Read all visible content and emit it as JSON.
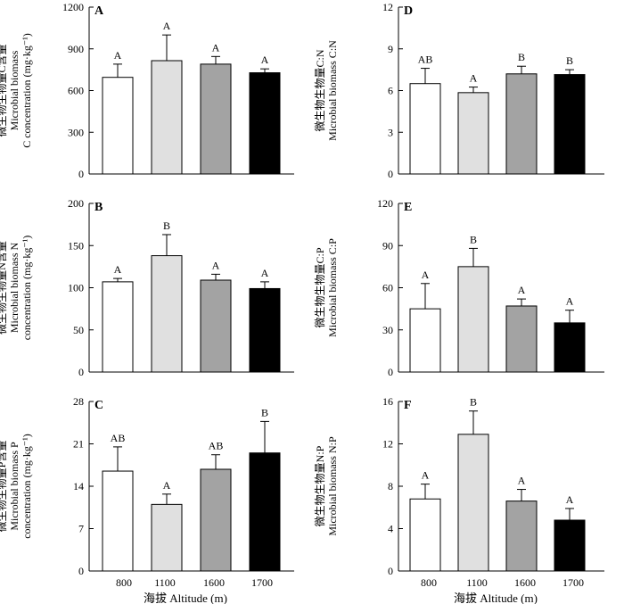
{
  "colors": {
    "s800": "#ffffff",
    "s1100": "#e0e0e0",
    "s1600": "#a3a3a3",
    "s1700": "#000000",
    "stroke": "#000000"
  },
  "x_axis_title": "海拔 Altitude (m)",
  "chart_data": [
    {
      "panel": "A",
      "type": "bar",
      "categories": [
        "800",
        "1100",
        "1600",
        "1700"
      ],
      "values": [
        695,
        815,
        790,
        728
      ],
      "errors": [
        95,
        185,
        55,
        28
      ],
      "sig": [
        "A",
        "A",
        "A",
        "A"
      ],
      "ylim": [
        0,
        1200
      ],
      "yticks": [
        "0",
        "300",
        "600",
        "900",
        "1200"
      ],
      "ylabel": [
        "微生物生物量C含量",
        "Microbial biomass",
        "C concentration (mg·kg⁻¹)"
      ]
    },
    {
      "panel": "B",
      "type": "bar",
      "categories": [
        "800",
        "1100",
        "1600",
        "1700"
      ],
      "values": [
        107,
        138,
        109,
        99
      ],
      "errors": [
        4,
        25,
        7,
        8
      ],
      "sig": [
        "A",
        "B",
        "A",
        "A"
      ],
      "ylim": [
        0,
        200
      ],
      "yticks": [
        "0",
        "50",
        "100",
        "150",
        "200"
      ],
      "ylabel": [
        "微生物生物量N含量",
        "Microbial biomass N",
        "concentration (mg·kg⁻¹)"
      ]
    },
    {
      "panel": "C",
      "type": "bar",
      "categories": [
        "800",
        "1100",
        "1600",
        "1700"
      ],
      "values": [
        16.5,
        11.0,
        16.8,
        19.5
      ],
      "errors": [
        4.0,
        1.7,
        2.4,
        5.2
      ],
      "sig": [
        "AB",
        "A",
        "AB",
        "B"
      ],
      "ylim": [
        0,
        28
      ],
      "yticks": [
        "0",
        "7",
        "14",
        "21",
        "28"
      ],
      "ylabel": [
        "微生物生物量P含量",
        "Microbial biomass P",
        "concentration (mg·kg⁻¹)"
      ]
    },
    {
      "panel": "D",
      "type": "bar",
      "categories": [
        "800",
        "1100",
        "1600",
        "1700"
      ],
      "values": [
        6.5,
        5.85,
        7.2,
        7.15
      ],
      "errors": [
        1.1,
        0.4,
        0.55,
        0.35
      ],
      "sig": [
        "AB",
        "A",
        "B",
        "B"
      ],
      "ylim": [
        0,
        12
      ],
      "yticks": [
        "0",
        "3",
        "6",
        "9",
        "12"
      ],
      "ylabel": [
        "微生物生物量C:N",
        "Microbial biomass C:N"
      ]
    },
    {
      "panel": "E",
      "type": "bar",
      "categories": [
        "800",
        "1100",
        "1600",
        "1700"
      ],
      "values": [
        45,
        75,
        47,
        35
      ],
      "errors": [
        18,
        13,
        5,
        9
      ],
      "sig": [
        "A",
        "B",
        "A",
        "A"
      ],
      "ylim": [
        0,
        120
      ],
      "yticks": [
        "0",
        "30",
        "60",
        "90",
        "120"
      ],
      "ylabel": [
        "微生物生物量C:P",
        "Microbial biomass C:P"
      ]
    },
    {
      "panel": "F",
      "type": "bar",
      "categories": [
        "800",
        "1100",
        "1600",
        "1700"
      ],
      "values": [
        6.8,
        12.9,
        6.6,
        4.8
      ],
      "errors": [
        1.4,
        2.2,
        1.1,
        1.1
      ],
      "sig": [
        "A",
        "B",
        "A",
        "A"
      ],
      "ylim": [
        0,
        16
      ],
      "yticks": [
        "0",
        "4",
        "8",
        "12",
        "16"
      ],
      "ylabel": [
        "微生物生物量N:P",
        "Microbial biomass N:P"
      ]
    }
  ]
}
